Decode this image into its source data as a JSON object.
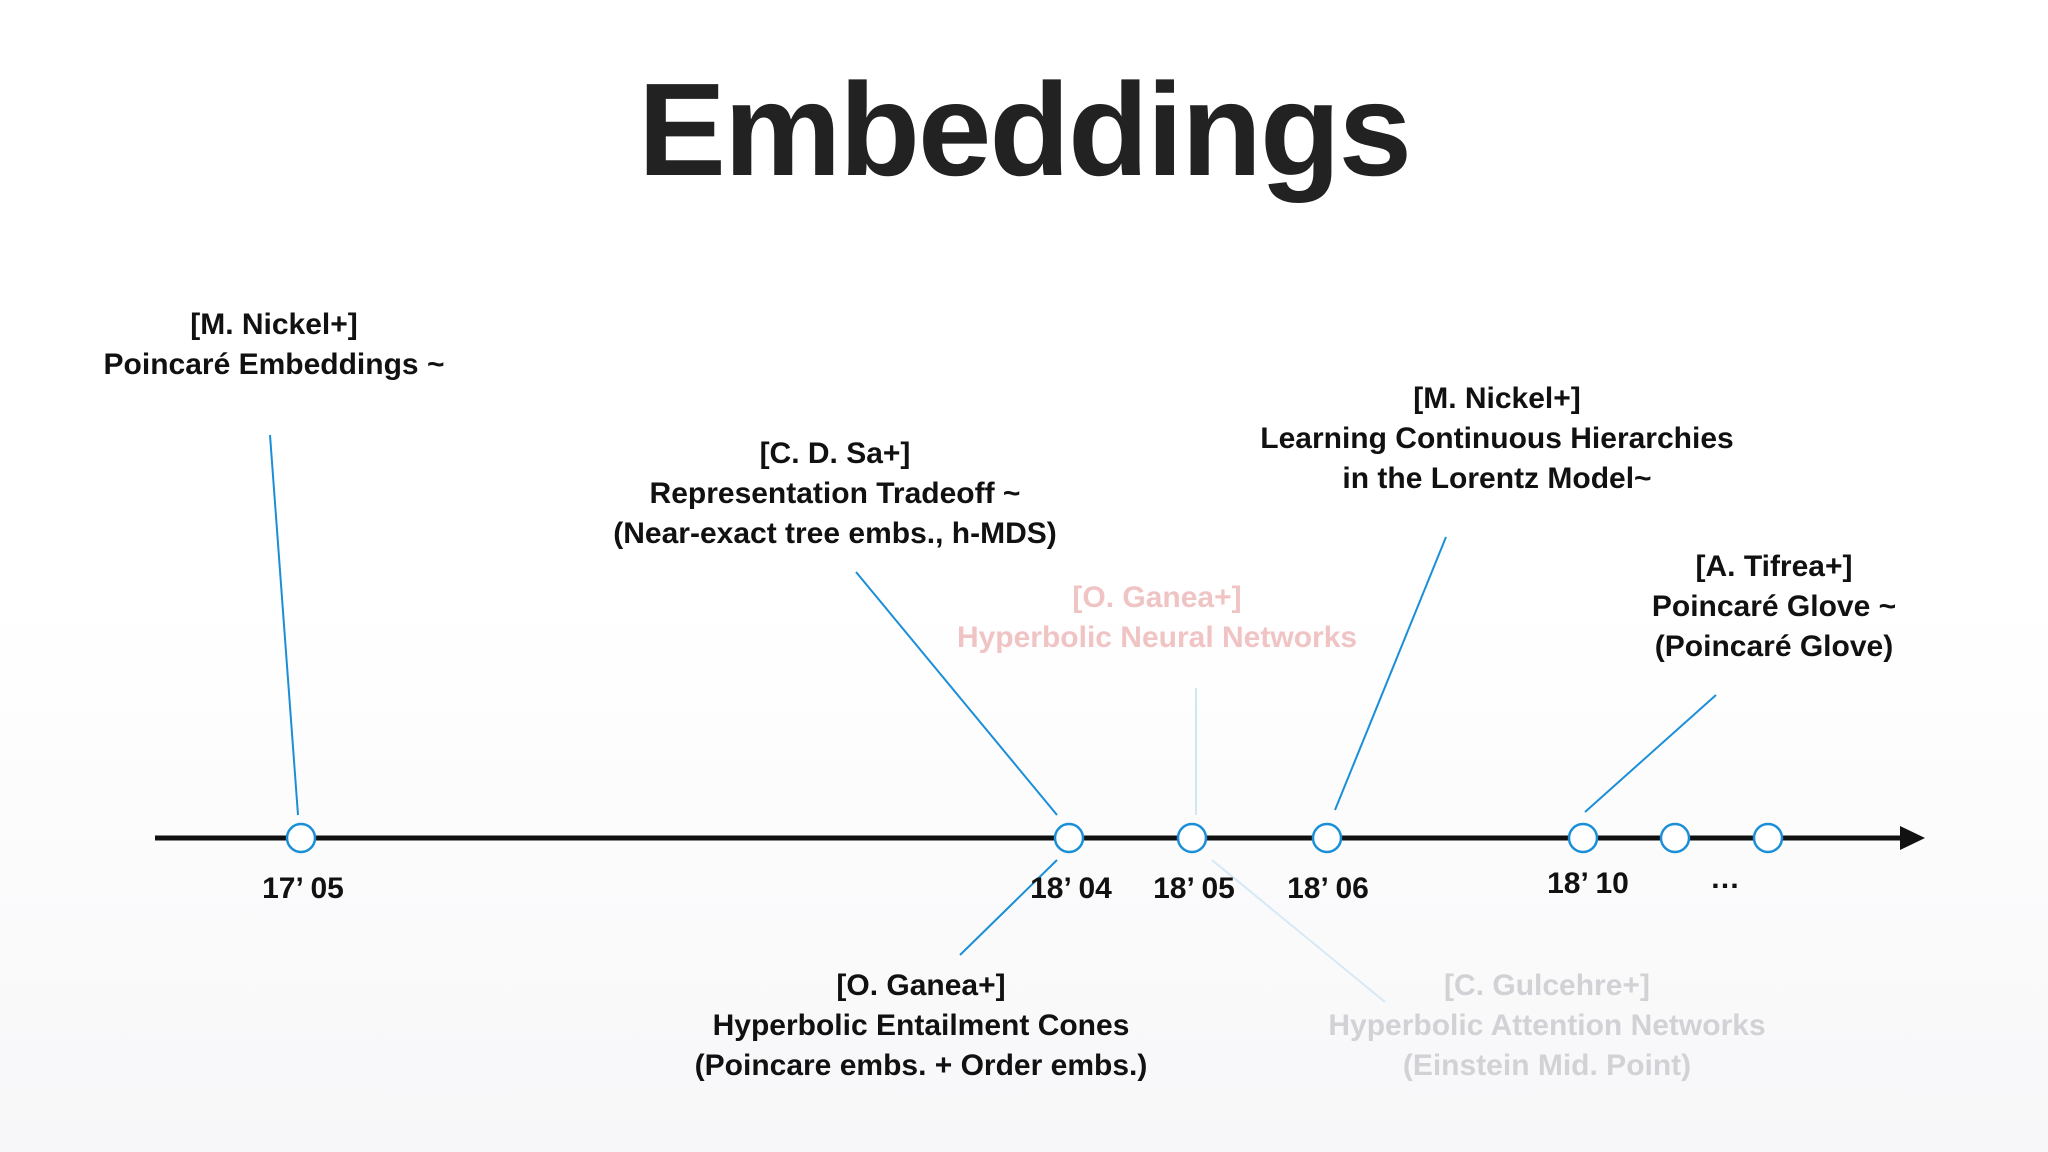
{
  "title": "Embeddings",
  "dates": {
    "d1705": "17’ 05",
    "d1804": "18’ 04",
    "d1805": "18’ 05",
    "d1806": "18’ 06",
    "d1810": "18’ 10",
    "ellipsis": "…"
  },
  "papers": {
    "nickel_poincare": {
      "author": "[M. Nickel+]",
      "line1": "Poincaré Embeddings ~"
    },
    "desa": {
      "author": "[C. D. Sa+]",
      "line1": "Representation Tradeoff ~",
      "line2": "(Near-exact tree embs., h-MDS)"
    },
    "ganea_hnn": {
      "author": "[O. Ganea+]",
      "line1": "Hyperbolic Neural Networks"
    },
    "nickel_lorentz": {
      "author": "[M. Nickel+]",
      "line1": "Learning Continuous Hierarchies",
      "line2": "in  the Lorentz Model~"
    },
    "tifrea": {
      "author": "[A. Tifrea+]",
      "line1": "Poincaré Glove ~",
      "line2": "(Poincaré Glove)"
    },
    "ganea_cones": {
      "author": "[O. Ganea+]",
      "line1": "Hyperbolic Entailment Cones",
      "line2": "(Poincare embs. + Order embs.)"
    },
    "gulcehre": {
      "author": "[C. Gulcehre+]",
      "line1": "Hyperbolic Attention Networks",
      "line2": "(Einstein Mid. Point)"
    }
  },
  "colors": {
    "timeline": "#111111",
    "accent_blue": "#1a8fd8",
    "faded_red_text": "#f0c4c4",
    "faded_gray_text": "#d2d2d6"
  }
}
